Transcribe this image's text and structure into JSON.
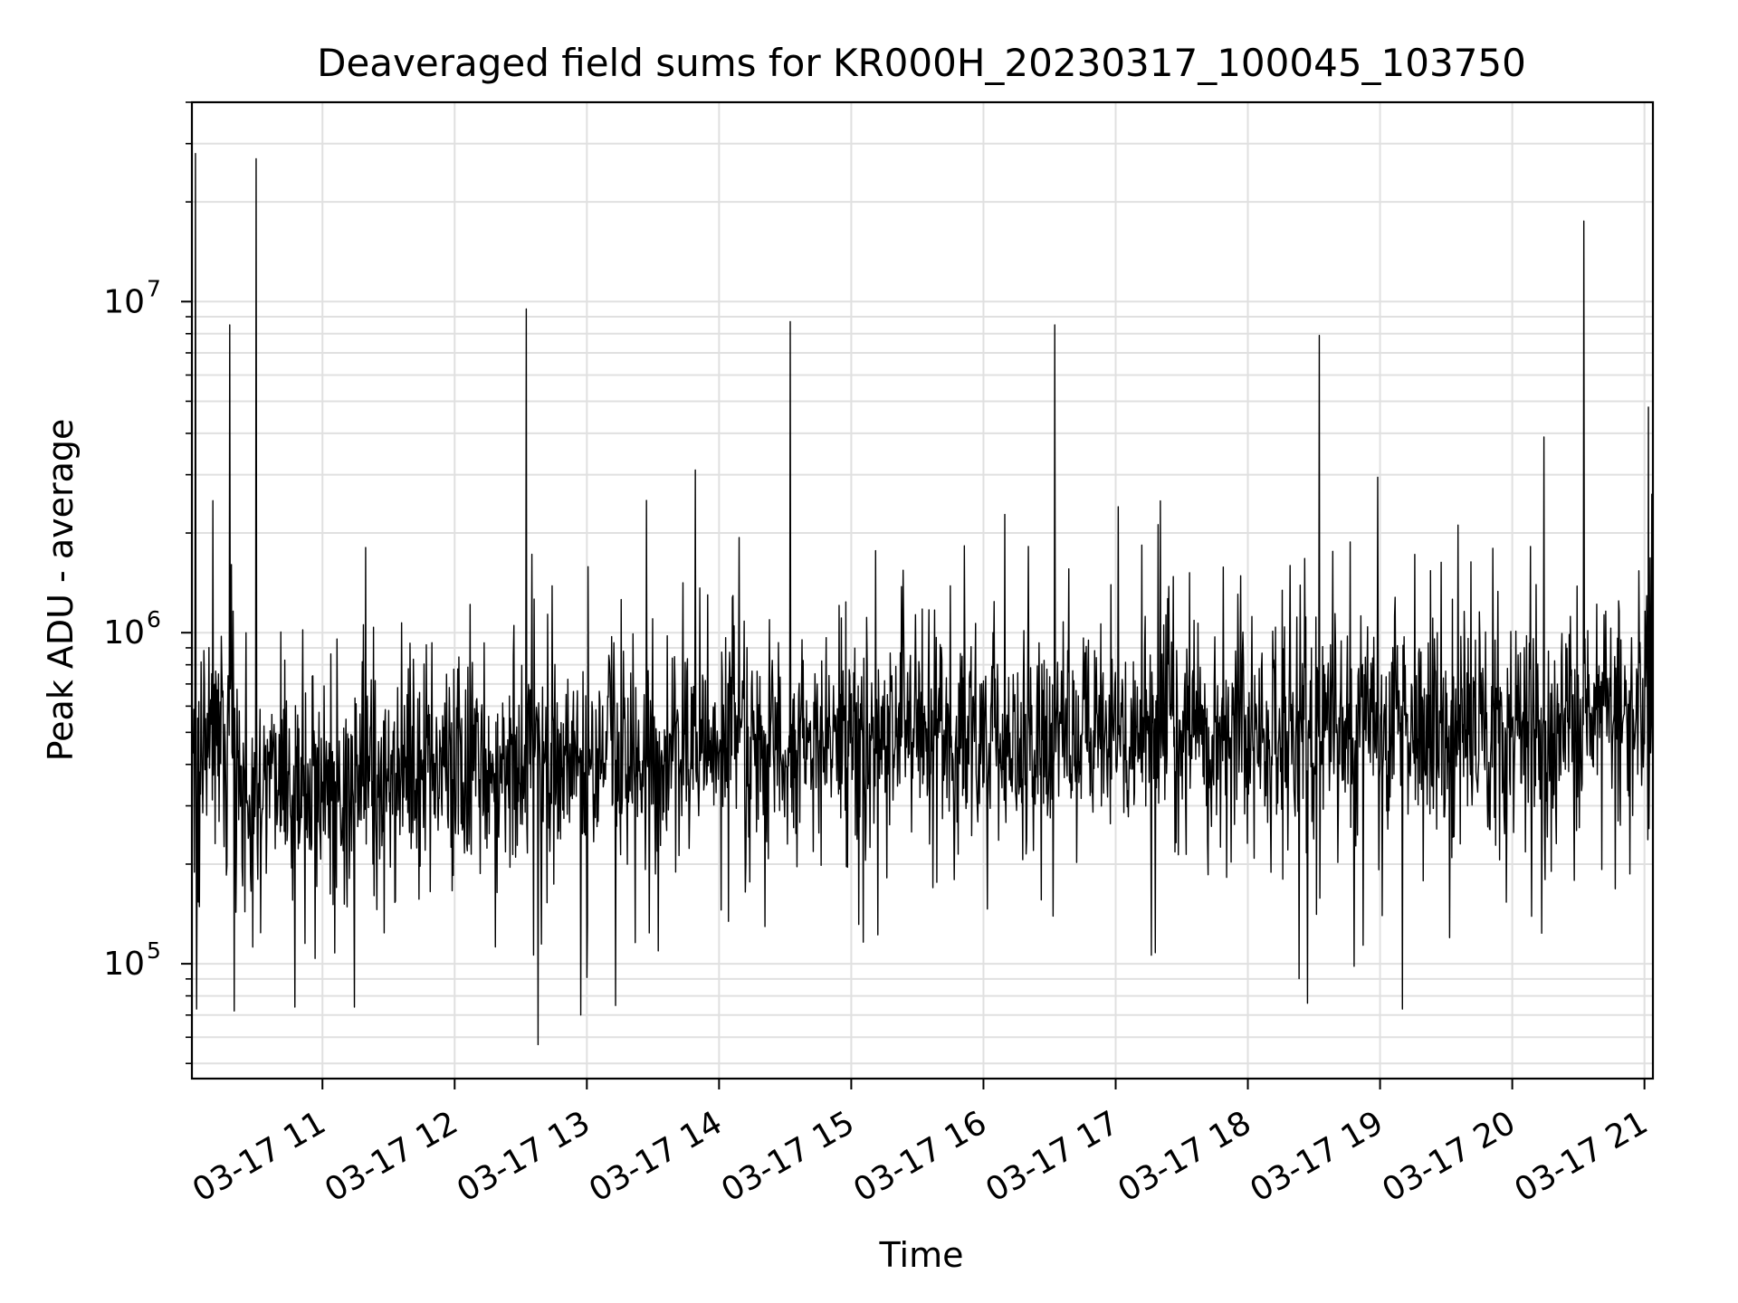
{
  "chart_data": {
    "type": "line",
    "title": "Deaveraged field sums for KR000H_20230317_100045_103750",
    "xlabel": "Time",
    "ylabel": "Peak ADU - average",
    "yscale": "log",
    "ylim": [
      45000,
      40000000
    ],
    "xlim_hours": [
      10.0125,
      21.0639
    ],
    "grid": true,
    "line_color": "#000000",
    "x_ticks": [
      {
        "hour": 11,
        "label": "03-17 11"
      },
      {
        "hour": 12,
        "label": "03-17 12"
      },
      {
        "hour": 13,
        "label": "03-17 13"
      },
      {
        "hour": 14,
        "label": "03-17 14"
      },
      {
        "hour": 15,
        "label": "03-17 15"
      },
      {
        "hour": 16,
        "label": "03-17 16"
      },
      {
        "hour": 17,
        "label": "03-17 17"
      },
      {
        "hour": 18,
        "label": "03-17 18"
      },
      {
        "hour": 19,
        "label": "03-17 19"
      },
      {
        "hour": 20,
        "label": "03-17 20"
      },
      {
        "hour": 21,
        "label": "03-17 21"
      }
    ],
    "y_ticks": [
      {
        "exp": 5,
        "label": "10",
        "sup": "5"
      },
      {
        "exp": 6,
        "label": "10",
        "sup": "6"
      },
      {
        "exp": 7,
        "label": "10",
        "sup": "7"
      }
    ],
    "baseline_profile": [
      {
        "hour": 10.02,
        "value": 380000
      },
      {
        "hour": 10.3,
        "value": 600000
      },
      {
        "hour": 10.4,
        "value": 320000
      },
      {
        "hour": 11.0,
        "value": 330000
      },
      {
        "hour": 12.0,
        "value": 390000
      },
      {
        "hour": 13.0,
        "value": 420000
      },
      {
        "hour": 14.0,
        "value": 480000
      },
      {
        "hour": 15.0,
        "value": 470000
      },
      {
        "hour": 16.0,
        "value": 460000
      },
      {
        "hour": 17.0,
        "value": 500000
      },
      {
        "hour": 18.0,
        "value": 490000
      },
      {
        "hour": 19.0,
        "value": 550000
      },
      {
        "hour": 20.0,
        "value": 470000
      },
      {
        "hour": 21.06,
        "value": 600000
      }
    ],
    "peaks": [
      {
        "hour": 10.04,
        "value": 28000000
      },
      {
        "hour": 10.3,
        "value": 8500000
      },
      {
        "hour": 10.5,
        "value": 27000000
      },
      {
        "hour": 12.54,
        "value": 9500000
      },
      {
        "hour": 13.82,
        "value": 3100000
      },
      {
        "hour": 14.54,
        "value": 8700000
      },
      {
        "hour": 16.54,
        "value": 8500000
      },
      {
        "hour": 17.02,
        "value": 2400000
      },
      {
        "hour": 17.34,
        "value": 2500000
      },
      {
        "hour": 18.54,
        "value": 7900000
      },
      {
        "hour": 20.24,
        "value": 3900000
      },
      {
        "hour": 20.54,
        "value": 17500000
      },
      {
        "hour": 21.03,
        "value": 4800000
      }
    ],
    "dips": [
      {
        "hour": 10.05,
        "value": 73000
      },
      {
        "hour": 10.79,
        "value": 74000
      },
      {
        "hour": 11.24,
        "value": 74000
      },
      {
        "hour": 12.63,
        "value": 57000
      },
      {
        "hour": 18.45,
        "value": 76000
      },
      {
        "hour": 19.17,
        "value": 73000
      }
    ]
  }
}
